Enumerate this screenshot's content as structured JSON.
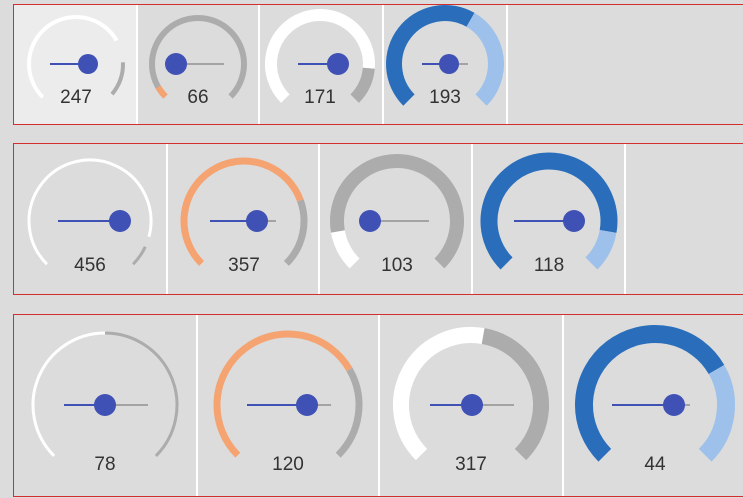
{
  "rows": [
    {
      "gauges": [
        {
          "value": "247",
          "style": "thin",
          "selected": true
        },
        {
          "value": "66",
          "style": "thin"
        },
        {
          "value": "171",
          "style": "thick"
        },
        {
          "value": "193",
          "style": "thicker"
        }
      ]
    },
    {
      "gauges": [
        {
          "value": "456",
          "style": "thin"
        },
        {
          "value": "357",
          "style": "medium"
        },
        {
          "value": "103",
          "style": "thick"
        },
        {
          "value": "118",
          "style": "thicker"
        }
      ]
    },
    {
      "gauges": [
        {
          "value": "78",
          "style": "thin"
        },
        {
          "value": "120",
          "style": "medium"
        },
        {
          "value": "317",
          "style": "thick"
        },
        {
          "value": "44",
          "style": "thicker"
        }
      ]
    }
  ],
  "colors": {
    "track_gray": "#acacac",
    "white": "#ffffff",
    "orange": "#f4a371",
    "blue": "#2a6ebb",
    "light_blue": "#9dc1ea",
    "slider": "#3f51b5",
    "slider_track": "#a3a3a3",
    "row_border": "#d32f2f"
  }
}
